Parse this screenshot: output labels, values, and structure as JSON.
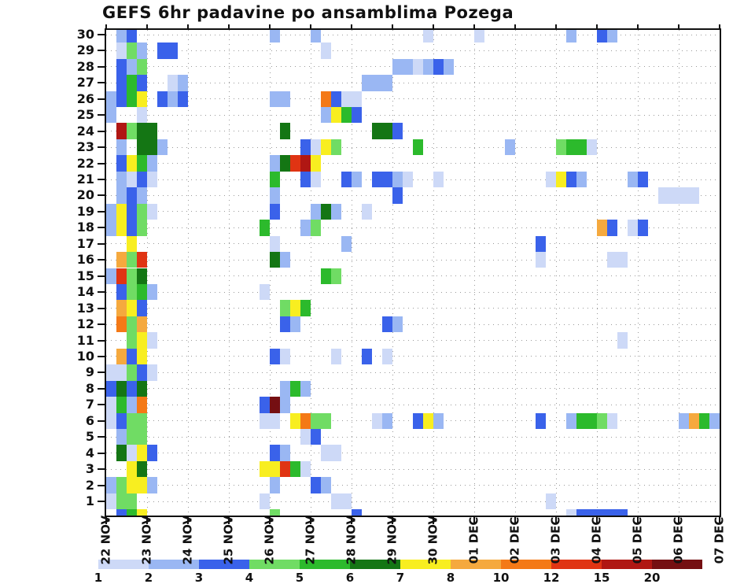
{
  "chart_data": {
    "type": "heatmap",
    "title": "GEFS 6hr padavine po ansamblima Pozega",
    "xlabel": "",
    "ylabel": "",
    "x_tick_labels": [
      "22 NOV",
      "23 NOV",
      "24 NOV",
      "25 NOV",
      "26 NOV",
      "27 NOV",
      "28 NOV",
      "29 NOV",
      "30 NOV",
      "01 DEC",
      "02 DEC",
      "03 DEC",
      "04 DEC",
      "05 DEC",
      "06 DEC",
      "07 DEC"
    ],
    "columns_per_day": 4,
    "n_cols": 60,
    "y_tick_labels": [
      "30",
      "29",
      "28",
      "27",
      "26",
      "25",
      "24",
      "23",
      "22",
      "21",
      "20",
      "19",
      "18",
      "17",
      "16",
      "15",
      "14",
      "13",
      "12",
      "11",
      "10",
      "9",
      "8",
      "7",
      "6",
      "5",
      "4",
      "3",
      "2",
      "1"
    ],
    "grid": "dotted",
    "legend_position": "bottom",
    "colorbar": {
      "values": [
        "1",
        "2",
        "3",
        "4",
        "5",
        "6",
        "7",
        "8",
        "10",
        "12",
        "15",
        "20"
      ],
      "colors": [
        "#cdd9f7",
        "#9ab7f3",
        "#3a62ea",
        "#70dc64",
        "#2cba2c",
        "#147614",
        "#f8ee20",
        "#f5a93e",
        "#f47916",
        "#e03413",
        "#b01713",
        "#750f12"
      ]
    },
    "cells_format": "member -> list of [six_hour_column_index_from_22NOV00, colorbar_level_1_to_12]",
    "cells": {
      "30": [
        [
          1,
          2
        ],
        [
          2,
          3
        ],
        [
          16,
          2
        ],
        [
          20,
          2
        ],
        [
          31,
          1
        ],
        [
          36,
          1
        ],
        [
          45,
          2
        ],
        [
          48,
          3
        ],
        [
          49,
          2
        ]
      ],
      "29": [
        [
          1,
          1
        ],
        [
          2,
          4
        ],
        [
          3,
          2
        ],
        [
          5,
          3
        ],
        [
          6,
          3
        ],
        [
          21,
          1
        ]
      ],
      "28": [
        [
          1,
          3
        ],
        [
          2,
          2
        ],
        [
          3,
          4
        ],
        [
          28,
          2
        ],
        [
          29,
          2
        ],
        [
          30,
          1
        ],
        [
          31,
          2
        ],
        [
          32,
          3
        ],
        [
          33,
          2
        ]
      ],
      "27": [
        [
          1,
          3
        ],
        [
          2,
          5
        ],
        [
          3,
          3
        ],
        [
          6,
          1
        ],
        [
          7,
          2
        ],
        [
          25,
          2
        ],
        [
          26,
          2
        ],
        [
          27,
          2
        ]
      ],
      "26": [
        [
          0,
          2
        ],
        [
          1,
          3
        ],
        [
          2,
          5
        ],
        [
          3,
          7
        ],
        [
          5,
          3
        ],
        [
          6,
          2
        ],
        [
          7,
          3
        ],
        [
          16,
          2
        ],
        [
          17,
          2
        ],
        [
          21,
          9
        ],
        [
          22,
          3
        ],
        [
          23,
          1
        ],
        [
          24,
          1
        ]
      ],
      "25": [
        [
          0,
          2
        ],
        [
          3,
          1
        ],
        [
          21,
          2
        ],
        [
          22,
          7
        ],
        [
          23,
          5
        ],
        [
          24,
          3
        ]
      ],
      "24": [
        [
          1,
          11
        ],
        [
          2,
          4
        ],
        [
          3,
          6
        ],
        [
          4,
          6
        ],
        [
          17,
          6
        ],
        [
          26,
          6
        ],
        [
          27,
          6
        ],
        [
          28,
          3
        ]
      ],
      "23": [
        [
          1,
          2
        ],
        [
          3,
          6
        ],
        [
          4,
          6
        ],
        [
          5,
          2
        ],
        [
          19,
          3
        ],
        [
          20,
          1
        ],
        [
          21,
          7
        ],
        [
          22,
          4
        ],
        [
          30,
          5
        ],
        [
          39,
          2
        ],
        [
          44,
          4
        ],
        [
          45,
          5
        ],
        [
          46,
          5
        ],
        [
          47,
          1
        ]
      ],
      "22": [
        [
          1,
          3
        ],
        [
          2,
          7
        ],
        [
          3,
          5
        ],
        [
          4,
          2
        ],
        [
          16,
          2
        ],
        [
          17,
          6
        ],
        [
          18,
          10
        ],
        [
          19,
          11
        ],
        [
          20,
          7
        ]
      ],
      "21": [
        [
          1,
          2
        ],
        [
          2,
          1
        ],
        [
          3,
          3
        ],
        [
          4,
          1
        ],
        [
          16,
          5
        ],
        [
          19,
          3
        ],
        [
          20,
          1
        ],
        [
          23,
          3
        ],
        [
          24,
          2
        ],
        [
          26,
          3
        ],
        [
          27,
          3
        ],
        [
          28,
          2
        ],
        [
          29,
          1
        ],
        [
          32,
          1
        ],
        [
          43,
          1
        ],
        [
          44,
          7
        ],
        [
          45,
          3
        ],
        [
          46,
          2
        ],
        [
          51,
          2
        ],
        [
          52,
          3
        ]
      ],
      "20": [
        [
          1,
          2
        ],
        [
          2,
          3
        ],
        [
          3,
          2
        ],
        [
          16,
          2
        ],
        [
          28,
          3
        ],
        [
          54,
          1
        ],
        [
          55,
          1
        ],
        [
          56,
          1
        ],
        [
          57,
          1
        ]
      ],
      "19": [
        [
          0,
          2
        ],
        [
          1,
          7
        ],
        [
          2,
          3
        ],
        [
          3,
          4
        ],
        [
          4,
          1
        ],
        [
          16,
          3
        ],
        [
          20,
          2
        ],
        [
          21,
          6
        ],
        [
          22,
          2
        ],
        [
          25,
          1
        ]
      ],
      "18": [
        [
          0,
          2
        ],
        [
          1,
          7
        ],
        [
          2,
          3
        ],
        [
          3,
          4
        ],
        [
          15,
          5
        ],
        [
          19,
          2
        ],
        [
          20,
          4
        ],
        [
          48,
          8
        ],
        [
          49,
          3
        ],
        [
          51,
          1
        ],
        [
          52,
          3
        ]
      ],
      "17": [
        [
          2,
          7
        ],
        [
          16,
          1
        ],
        [
          23,
          2
        ],
        [
          42,
          3
        ]
      ],
      "16": [
        [
          1,
          8
        ],
        [
          2,
          4
        ],
        [
          3,
          10
        ],
        [
          16,
          6
        ],
        [
          17,
          2
        ],
        [
          42,
          1
        ],
        [
          49,
          1
        ],
        [
          50,
          1
        ]
      ],
      "15": [
        [
          0,
          2
        ],
        [
          1,
          10
        ],
        [
          2,
          4
        ],
        [
          3,
          6
        ],
        [
          21,
          5
        ],
        [
          22,
          4
        ]
      ],
      "14": [
        [
          1,
          3
        ],
        [
          2,
          4
        ],
        [
          3,
          5
        ],
        [
          4,
          2
        ],
        [
          15,
          1
        ]
      ],
      "13": [
        [
          1,
          8
        ],
        [
          2,
          7
        ],
        [
          3,
          3
        ],
        [
          17,
          4
        ],
        [
          18,
          7
        ],
        [
          19,
          5
        ]
      ],
      "12": [
        [
          1,
          9
        ],
        [
          2,
          4
        ],
        [
          3,
          8
        ],
        [
          17,
          3
        ],
        [
          18,
          2
        ],
        [
          27,
          3
        ],
        [
          28,
          2
        ]
      ],
      "11": [
        [
          2,
          4
        ],
        [
          3,
          7
        ],
        [
          4,
          1
        ],
        [
          50,
          1
        ]
      ],
      "10": [
        [
          1,
          8
        ],
        [
          2,
          3
        ],
        [
          3,
          7
        ],
        [
          16,
          3
        ],
        [
          17,
          1
        ],
        [
          22,
          1
        ],
        [
          25,
          3
        ],
        [
          27,
          1
        ]
      ],
      "9": [
        [
          0,
          1
        ],
        [
          1,
          1
        ],
        [
          2,
          4
        ],
        [
          3,
          3
        ],
        [
          4,
          1
        ]
      ],
      "8": [
        [
          0,
          3
        ],
        [
          1,
          6
        ],
        [
          2,
          3
        ],
        [
          3,
          6
        ],
        [
          17,
          2
        ],
        [
          18,
          5
        ],
        [
          19,
          2
        ]
      ],
      "7": [
        [
          0,
          1
        ],
        [
          1,
          5
        ],
        [
          2,
          2
        ],
        [
          3,
          9
        ],
        [
          15,
          3
        ],
        [
          16,
          12
        ],
        [
          17,
          2
        ]
      ],
      "6": [
        [
          0,
          1
        ],
        [
          1,
          3
        ],
        [
          2,
          4
        ],
        [
          3,
          4
        ],
        [
          15,
          1
        ],
        [
          16,
          1
        ],
        [
          18,
          7
        ],
        [
          19,
          9
        ],
        [
          20,
          4
        ],
        [
          21,
          4
        ],
        [
          26,
          1
        ],
        [
          27,
          2
        ],
        [
          30,
          3
        ],
        [
          31,
          7
        ],
        [
          32,
          2
        ],
        [
          42,
          3
        ],
        [
          45,
          2
        ],
        [
          46,
          5
        ],
        [
          47,
          5
        ],
        [
          48,
          4
        ],
        [
          49,
          1
        ],
        [
          56,
          2
        ],
        [
          57,
          8
        ],
        [
          58,
          5
        ],
        [
          59,
          2
        ]
      ],
      "5": [
        [
          1,
          2
        ],
        [
          2,
          4
        ],
        [
          3,
          4
        ],
        [
          19,
          1
        ],
        [
          20,
          3
        ]
      ],
      "4": [
        [
          1,
          6
        ],
        [
          2,
          1
        ],
        [
          3,
          7
        ],
        [
          4,
          3
        ],
        [
          16,
          3
        ],
        [
          17,
          2
        ],
        [
          21,
          1
        ],
        [
          22,
          1
        ]
      ],
      "3": [
        [
          2,
          7
        ],
        [
          3,
          6
        ],
        [
          15,
          7
        ],
        [
          16,
          7
        ],
        [
          17,
          10
        ],
        [
          18,
          5
        ],
        [
          19,
          1
        ]
      ],
      "2": [
        [
          0,
          2
        ],
        [
          1,
          4
        ],
        [
          2,
          7
        ],
        [
          3,
          7
        ],
        [
          4,
          2
        ],
        [
          16,
          2
        ],
        [
          20,
          3
        ],
        [
          21,
          2
        ]
      ],
      "1": [
        [
          0,
          1
        ],
        [
          1,
          4
        ],
        [
          2,
          4
        ],
        [
          15,
          1
        ],
        [
          22,
          1
        ],
        [
          23,
          1
        ],
        [
          43,
          1
        ]
      ],
      "0": [
        [
          1,
          3
        ],
        [
          2,
          5
        ],
        [
          3,
          7
        ],
        [
          16,
          4
        ],
        [
          24,
          3
        ],
        [
          45,
          1
        ],
        [
          46,
          3
        ],
        [
          47,
          3
        ],
        [
          48,
          3
        ],
        [
          49,
          3
        ],
        [
          50,
          3
        ]
      ]
    }
  }
}
